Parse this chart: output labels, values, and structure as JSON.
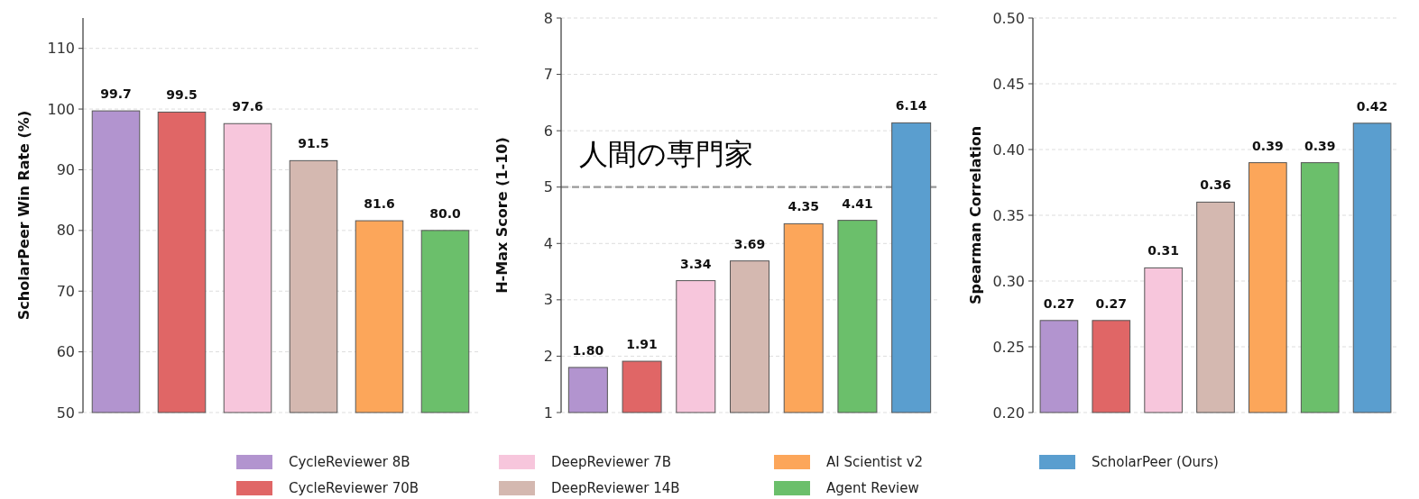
{
  "chart_data": [
    {
      "type": "bar",
      "ylabel": "ScholarPeer Win Rate (%)",
      "categories": [
        null,
        null,
        null,
        null,
        null,
        null
      ],
      "ylim": [
        50,
        115
      ],
      "yticks": [
        50,
        60,
        70,
        80,
        90,
        100,
        110
      ],
      "grid": "y",
      "legend": "bottom",
      "series": [
        {
          "name": "CycleReviewer 8B",
          "color": "#b294cf",
          "values": [
            99.7,
            null,
            null,
            null,
            null,
            null
          ],
          "value_labels": [
            "99.7",
            null,
            null,
            null,
            null,
            null
          ]
        },
        {
          "name": "CycleReviewer 70B",
          "color": "#e06666",
          "values": [
            null,
            99.5,
            null,
            null,
            null,
            null
          ],
          "value_labels": [
            null,
            "99.5",
            null,
            null,
            null,
            null
          ]
        },
        {
          "name": "DeepReviewer 7B",
          "color": "#f7c6dc",
          "values": [
            null,
            null,
            97.6,
            null,
            null,
            null
          ],
          "value_labels": [
            null,
            null,
            "97.6",
            null,
            null,
            null
          ]
        },
        {
          "name": "DeepReviewer 14B",
          "color": "#d4b8b0",
          "values": [
            null,
            null,
            null,
            91.5,
            null,
            null
          ],
          "value_labels": [
            null,
            null,
            null,
            "91.5",
            null,
            null
          ]
        },
        {
          "name": "AI Scientist v2",
          "color": "#fca65a",
          "values": [
            null,
            null,
            null,
            null,
            81.6,
            null
          ],
          "value_labels": [
            null,
            null,
            null,
            null,
            "81.6",
            null
          ]
        },
        {
          "name": "Agent Review",
          "color": "#6bbf6b",
          "values": [
            null,
            null,
            null,
            null,
            null,
            80.0
          ],
          "value_labels": [
            null,
            null,
            null,
            null,
            null,
            "80.0"
          ]
        }
      ]
    },
    {
      "type": "bar",
      "ylabel": "H-Max Score (1-10)",
      "categories": [
        null,
        null,
        null,
        null,
        null,
        null,
        null
      ],
      "ylim": [
        1,
        8
      ],
      "yticks": [
        1,
        2,
        3,
        4,
        5,
        6,
        7,
        8
      ],
      "grid": "y",
      "legend": "bottom",
      "ref_lines": [
        {
          "axis": "y",
          "value": 5,
          "label": "人間の専門家",
          "color": "#999999",
          "line_style": "dashed"
        }
      ],
      "series": [
        {
          "name": "CycleReviewer 8B",
          "color": "#b294cf",
          "values": [
            1.8,
            null,
            null,
            null,
            null,
            null,
            null
          ],
          "value_labels": [
            "1.80",
            null,
            null,
            null,
            null,
            null,
            null
          ]
        },
        {
          "name": "CycleReviewer 70B",
          "color": "#e06666",
          "values": [
            null,
            1.91,
            null,
            null,
            null,
            null,
            null
          ],
          "value_labels": [
            null,
            "1.91",
            null,
            null,
            null,
            null,
            null
          ]
        },
        {
          "name": "DeepReviewer 7B",
          "color": "#f7c6dc",
          "values": [
            null,
            null,
            3.34,
            null,
            null,
            null,
            null
          ],
          "value_labels": [
            null,
            null,
            "3.34",
            null,
            null,
            null,
            null
          ]
        },
        {
          "name": "DeepReviewer 14B",
          "color": "#d4b8b0",
          "values": [
            null,
            null,
            null,
            3.69,
            null,
            null,
            null
          ],
          "value_labels": [
            null,
            null,
            null,
            "3.69",
            null,
            null,
            null
          ]
        },
        {
          "name": "AI Scientist v2",
          "color": "#fca65a",
          "values": [
            null,
            null,
            null,
            null,
            4.35,
            null,
            null
          ],
          "value_labels": [
            null,
            null,
            null,
            null,
            "4.35",
            null,
            null
          ]
        },
        {
          "name": "Agent Review",
          "color": "#6bbf6b",
          "values": [
            null,
            null,
            null,
            null,
            null,
            4.41,
            null
          ],
          "value_labels": [
            null,
            null,
            null,
            null,
            null,
            "4.41",
            null
          ]
        },
        {
          "name": "ScholarPeer (Ours)",
          "color": "#5a9ecf",
          "values": [
            null,
            null,
            null,
            null,
            null,
            null,
            6.14
          ],
          "value_labels": [
            null,
            null,
            null,
            null,
            null,
            null,
            "6.14"
          ]
        }
      ]
    },
    {
      "type": "bar",
      "ylabel": "Spearman Correlation",
      "categories": [
        null,
        null,
        null,
        null,
        null,
        null,
        null
      ],
      "ylim": [
        0.2,
        0.5
      ],
      "yticks": [
        {
          "value": 0.2,
          "label": "0.20"
        },
        0.25,
        {
          "value": 0.3,
          "label": "0.30"
        },
        0.35,
        {
          "value": 0.4,
          "label": "0.40"
        },
        0.45,
        {
          "value": 0.5,
          "label": "0.50"
        }
      ],
      "grid": "y",
      "legend": "bottom",
      "series": [
        {
          "name": "CycleReviewer 8B",
          "color": "#b294cf",
          "values": [
            0.27,
            null,
            null,
            null,
            null,
            null,
            null
          ],
          "value_labels": [
            "0.27",
            null,
            null,
            null,
            null,
            null,
            null
          ]
        },
        {
          "name": "CycleReviewer 70B",
          "color": "#e06666",
          "values": [
            null,
            0.27,
            null,
            null,
            null,
            null,
            null
          ],
          "value_labels": [
            null,
            "0.27",
            null,
            null,
            null,
            null,
            null
          ]
        },
        {
          "name": "DeepReviewer 7B",
          "color": "#f7c6dc",
          "values": [
            null,
            null,
            0.31,
            null,
            null,
            null,
            null
          ],
          "value_labels": [
            null,
            null,
            "0.31",
            null,
            null,
            null,
            null
          ]
        },
        {
          "name": "DeepReviewer 14B",
          "color": "#d4b8b0",
          "values": [
            null,
            null,
            null,
            0.36,
            null,
            null,
            null
          ],
          "value_labels": [
            null,
            null,
            null,
            "0.36",
            null,
            null,
            null
          ]
        },
        {
          "name": "AI Scientist v2",
          "color": "#fca65a",
          "values": [
            null,
            null,
            null,
            null,
            0.39,
            null,
            null
          ],
          "value_labels": [
            null,
            null,
            null,
            null,
            "0.39",
            null,
            null
          ]
        },
        {
          "name": "Agent Review",
          "color": "#6bbf6b",
          "values": [
            null,
            null,
            null,
            null,
            null,
            0.39,
            null
          ],
          "value_labels": [
            null,
            null,
            null,
            null,
            null,
            "0.39",
            null
          ]
        },
        {
          "name": "ScholarPeer (Ours)",
          "color": "#5a9ecf",
          "values": [
            null,
            null,
            null,
            null,
            null,
            null,
            0.42
          ],
          "value_labels": [
            null,
            null,
            null,
            null,
            null,
            null,
            "0.42"
          ]
        }
      ]
    }
  ]
}
